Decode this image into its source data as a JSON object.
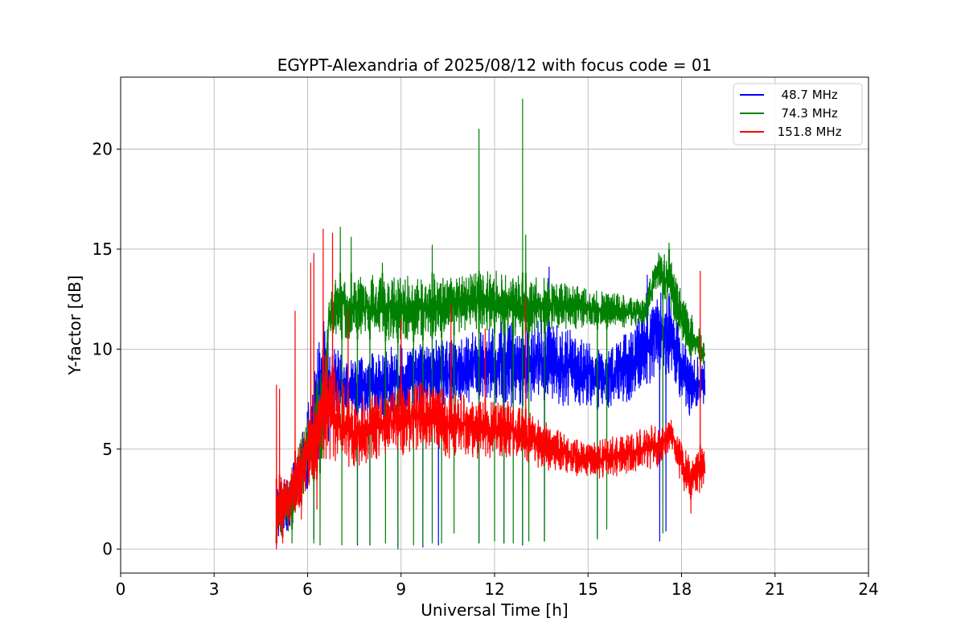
{
  "chart_data": {
    "type": "line",
    "title": "EGYPT-Alexandria of 2025/08/12 with focus code = 01",
    "xlabel": "Universal Time [h]",
    "ylabel": "Y-factor [dB]",
    "xlim": [
      0,
      24
    ],
    "ylim": [
      -1.2,
      23.6
    ],
    "xticks": [
      0,
      3,
      6,
      9,
      12,
      15,
      18,
      21,
      24
    ],
    "yticks": [
      0,
      5,
      10,
      15,
      20
    ],
    "grid": true,
    "legend_position": "top-right",
    "series": [
      {
        "name": "  48.7 MHz",
        "color": "#0000ff",
        "t_start": 5.0,
        "t_end": 18.75,
        "profile": [
          [
            5.0,
            [
              0.3,
              3.5
            ]
          ],
          [
            5.5,
            [
              1.0,
              4.0
            ]
          ],
          [
            6.0,
            [
              3.0,
              7.5
            ]
          ],
          [
            6.5,
            [
              4.5,
              11.5
            ]
          ],
          [
            6.9,
            [
              6.5,
              10.0
            ]
          ],
          [
            7.5,
            [
              6.5,
              10.0
            ]
          ],
          [
            8.5,
            [
              6.5,
              10.0
            ]
          ],
          [
            9.5,
            [
              7.0,
              10.5
            ]
          ],
          [
            10.5,
            [
              7.0,
              10.5
            ]
          ],
          [
            11.5,
            [
              7.5,
              11.0
            ]
          ],
          [
            12.5,
            [
              7.0,
              11.5
            ]
          ],
          [
            13.5,
            [
              7.5,
              11.5
            ]
          ],
          [
            14.5,
            [
              7.0,
              11.0
            ]
          ],
          [
            15.5,
            [
              7.0,
              10.0
            ]
          ],
          [
            16.5,
            [
              7.0,
              11.5
            ]
          ],
          [
            17.3,
            [
              9.0,
              13.0
            ]
          ],
          [
            17.7,
            [
              8.5,
              12.5
            ]
          ],
          [
            18.2,
            [
              6.5,
              10.0
            ]
          ],
          [
            18.6,
            [
              7.0,
              9.5
            ]
          ],
          [
            18.75,
            [
              7.0,
              9.5
            ]
          ]
        ],
        "dips": [
          [
            5.0,
            0.2
          ],
          [
            6.2,
            0.5
          ],
          [
            7.6,
            0.2
          ],
          [
            8.0,
            0.2
          ],
          [
            8.9,
            0.1
          ],
          [
            9.7,
            0.1
          ],
          [
            10.2,
            0.2
          ],
          [
            11.5,
            0.3
          ],
          [
            12.3,
            0.3
          ],
          [
            12.9,
            0.2
          ],
          [
            13.6,
            0.4
          ],
          [
            15.3,
            0.6
          ],
          [
            17.3,
            0.4
          ],
          [
            17.5,
            0.9
          ]
        ],
        "spikes": [
          [
            13.75,
            14.1
          ],
          [
            16.9,
            13.7
          ],
          [
            17.6,
            12.8
          ]
        ]
      },
      {
        "name": "  74.3 MHz",
        "color": "#008000",
        "t_start": 5.0,
        "t_end": 18.75,
        "profile": [
          [
            5.0,
            [
              0.3,
              3.0
            ]
          ],
          [
            5.5,
            [
              1.0,
              4.0
            ]
          ],
          [
            6.0,
            [
              3.0,
              7.0
            ]
          ],
          [
            6.5,
            [
              4.0,
              9.5
            ]
          ],
          [
            6.7,
            [
              10.0,
              13.0
            ]
          ],
          [
            7.0,
            [
              10.5,
              13.8
            ]
          ],
          [
            8.0,
            [
              10.5,
              13.8
            ]
          ],
          [
            9.0,
            [
              10.3,
              13.8
            ]
          ],
          [
            10.0,
            [
              10.5,
              13.8
            ]
          ],
          [
            11.0,
            [
              10.8,
              13.8
            ]
          ],
          [
            12.0,
            [
              10.8,
              14.0
            ]
          ],
          [
            13.0,
            [
              10.5,
              13.8
            ]
          ],
          [
            14.0,
            [
              11.0,
              13.5
            ]
          ],
          [
            15.0,
            [
              11.0,
              13.0
            ]
          ],
          [
            16.0,
            [
              11.0,
              12.8
            ]
          ],
          [
            16.8,
            [
              11.0,
              12.5
            ]
          ],
          [
            17.2,
            [
              13.0,
              14.8
            ]
          ],
          [
            17.6,
            [
              12.0,
              15.0
            ]
          ],
          [
            18.0,
            [
              10.0,
              13.0
            ]
          ],
          [
            18.4,
            [
              9.5,
              11.5
            ]
          ],
          [
            18.75,
            [
              9.0,
              10.5
            ]
          ]
        ],
        "dips": [
          [
            5.0,
            0.3
          ],
          [
            5.5,
            0.3
          ],
          [
            6.2,
            0.3
          ],
          [
            6.4,
            0.2
          ],
          [
            7.1,
            0.2
          ],
          [
            7.6,
            0.3
          ],
          [
            8.0,
            0.2
          ],
          [
            8.5,
            0.3
          ],
          [
            8.9,
            0.0
          ],
          [
            9.4,
            0.2
          ],
          [
            9.7,
            0.2
          ],
          [
            10.0,
            0.3
          ],
          [
            10.3,
            0.3
          ],
          [
            10.7,
            0.8
          ],
          [
            11.5,
            0.3
          ],
          [
            12.0,
            0.4
          ],
          [
            12.3,
            0.3
          ],
          [
            12.6,
            0.3
          ],
          [
            12.9,
            0.3
          ],
          [
            13.1,
            0.4
          ],
          [
            13.6,
            0.4
          ],
          [
            15.3,
            0.5
          ],
          [
            15.6,
            1.0
          ],
          [
            17.4,
            0.8
          ]
        ],
        "spikes": [
          [
            7.05,
            16.1
          ],
          [
            7.4,
            15.6
          ],
          [
            8.4,
            14.3
          ],
          [
            10.0,
            15.2
          ],
          [
            11.5,
            21.0
          ],
          [
            12.9,
            22.5
          ],
          [
            13.0,
            15.7
          ],
          [
            17.6,
            15.3
          ]
        ]
      },
      {
        "name": " 151.8 MHz",
        "color": "#ff0000",
        "t_start": 5.0,
        "t_end": 18.75,
        "profile": [
          [
            5.0,
            [
              0.3,
              3.5
            ]
          ],
          [
            5.5,
            [
              1.0,
              4.5
            ]
          ],
          [
            6.0,
            [
              3.0,
              6.5
            ]
          ],
          [
            6.3,
            [
              3.5,
              8.0
            ]
          ],
          [
            6.6,
            [
              4.0,
              11.0
            ]
          ],
          [
            6.9,
            [
              4.0,
              9.0
            ]
          ],
          [
            7.5,
            [
              4.0,
              7.5
            ]
          ],
          [
            8.5,
            [
              4.5,
              8.0
            ]
          ],
          [
            9.5,
            [
              4.8,
              8.5
            ]
          ],
          [
            10.5,
            [
              4.5,
              8.0
            ]
          ],
          [
            11.5,
            [
              4.5,
              7.5
            ]
          ],
          [
            12.5,
            [
              4.5,
              7.5
            ]
          ],
          [
            13.5,
            [
              4.0,
              6.5
            ]
          ],
          [
            14.5,
            [
              3.6,
              5.5
            ]
          ],
          [
            15.5,
            [
              3.5,
              5.5
            ]
          ],
          [
            16.5,
            [
              3.8,
              6.0
            ]
          ],
          [
            17.3,
            [
              4.0,
              6.3
            ]
          ],
          [
            17.7,
            [
              5.0,
              6.5
            ]
          ],
          [
            18.0,
            [
              3.0,
              5.5
            ]
          ],
          [
            18.3,
            [
              2.5,
              4.5
            ]
          ],
          [
            18.75,
            [
              3.0,
              5.5
            ]
          ]
        ],
        "dips": [
          [
            5.0,
            0.0
          ],
          [
            5.2,
            0.3
          ],
          [
            5.8,
            1.5
          ],
          [
            6.3,
            2.0
          ],
          [
            18.3,
            1.8
          ]
        ],
        "spikes": [
          [
            5.0,
            8.2
          ],
          [
            5.1,
            8.0
          ],
          [
            5.6,
            11.9
          ],
          [
            6.1,
            14.3
          ],
          [
            6.2,
            14.8
          ],
          [
            6.5,
            16.0
          ],
          [
            6.8,
            15.8
          ],
          [
            7.3,
            12.0
          ],
          [
            9.0,
            11.5
          ],
          [
            10.6,
            12.2
          ],
          [
            11.7,
            11.0
          ],
          [
            13.0,
            12.6
          ],
          [
            18.6,
            13.9
          ]
        ]
      }
    ]
  }
}
